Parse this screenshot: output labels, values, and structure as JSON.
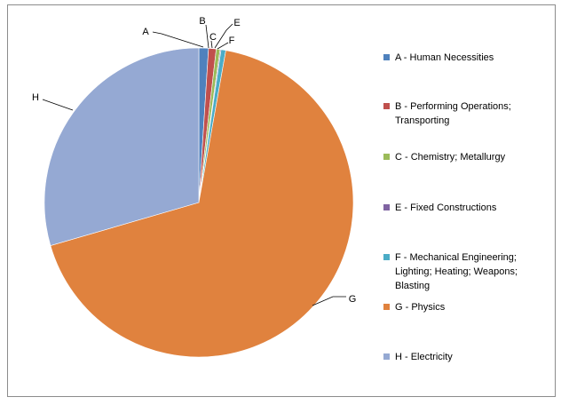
{
  "chart_data": {
    "type": "pie",
    "title": "",
    "slices": [
      {
        "label": "A",
        "legend": "A - Human Necessities",
        "value": 1.0,
        "color": "#4f81bd"
      },
      {
        "label": "B",
        "legend": "B - Performing Operations; Transporting",
        "value": 0.8,
        "color": "#c0504d"
      },
      {
        "label": "C",
        "legend": "C - Chemistry; Metallurgy",
        "value": 0.4,
        "color": "#9bbb59"
      },
      {
        "label": "E",
        "legend": "E - Fixed Constructions",
        "value": 0.1,
        "color": "#8064a2"
      },
      {
        "label": "F",
        "legend": "F - Mechanical Engineering; Lighting; Heating; Weapons; Blasting",
        "value": 0.5,
        "color": "#4bacc6"
      },
      {
        "label": "G",
        "legend": "G - Physics",
        "value": 67.7,
        "color": "#e0823e"
      },
      {
        "label": "H",
        "legend": "H - Electricity",
        "value": 29.5,
        "color": "#95a9d3"
      }
    ],
    "legend_position": "right",
    "data_labels": "category-name-with-leader-lines"
  }
}
